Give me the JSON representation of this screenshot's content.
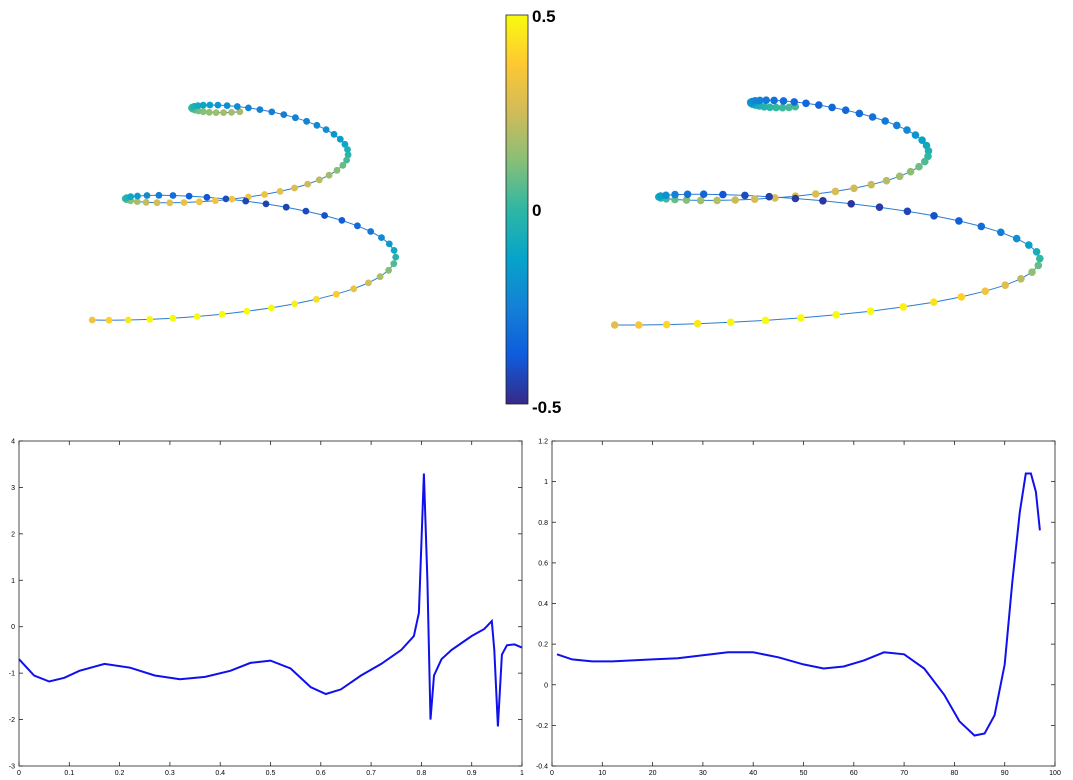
{
  "colorbar": {
    "ticks": [
      {
        "value": 0.5,
        "label": "0.5"
      },
      {
        "value": 0,
        "label": "0"
      },
      {
        "value": -0.5,
        "label": "-0.5"
      }
    ],
    "range": [
      -0.5,
      0.5
    ],
    "colormap": "parula",
    "colors": [
      "#352a87",
      "#0f5cdd",
      "#1481d6",
      "#06a4ca",
      "#2eb7a4",
      "#87bf77",
      "#d1bb59",
      "#fec832",
      "#f9fb0e"
    ]
  },
  "chart_data": [
    {
      "type": "scatter",
      "name": "curve-left",
      "description_hint": "3D spiral curve with markers colored by value",
      "marker_count": 90,
      "color_range": [
        -0.5,
        0.5
      ]
    },
    {
      "type": "scatter",
      "name": "curve-right",
      "marker_count": 90,
      "color_range": [
        -0.5,
        0.5
      ]
    },
    {
      "type": "line",
      "xlim": [
        0,
        1
      ],
      "ylim": [
        -3,
        4
      ],
      "xticks": [
        "0",
        "0.1",
        "0.2",
        "0.3",
        "0.4",
        "0.5",
        "0.6",
        "0.7",
        "0.8",
        "0.9",
        "1"
      ],
      "yticks": [
        "-3",
        "-2",
        "-1",
        "0",
        "1",
        "2",
        "3",
        "4"
      ],
      "series": [
        {
          "color": "#1010ee",
          "points": [
            [
              0.0,
              -0.7
            ],
            [
              0.03,
              -1.05
            ],
            [
              0.06,
              -1.18
            ],
            [
              0.09,
              -1.1
            ],
            [
              0.12,
              -0.95
            ],
            [
              0.17,
              -0.8
            ],
            [
              0.22,
              -0.88
            ],
            [
              0.27,
              -1.05
            ],
            [
              0.32,
              -1.13
            ],
            [
              0.37,
              -1.08
            ],
            [
              0.42,
              -0.95
            ],
            [
              0.46,
              -0.78
            ],
            [
              0.5,
              -0.73
            ],
            [
              0.54,
              -0.9
            ],
            [
              0.58,
              -1.3
            ],
            [
              0.61,
              -1.45
            ],
            [
              0.64,
              -1.35
            ],
            [
              0.68,
              -1.05
            ],
            [
              0.72,
              -0.8
            ],
            [
              0.76,
              -0.5
            ],
            [
              0.785,
              -0.2
            ],
            [
              0.795,
              0.3
            ],
            [
              0.805,
              3.3
            ],
            [
              0.812,
              1.0
            ],
            [
              0.818,
              -2.0
            ],
            [
              0.825,
              -1.05
            ],
            [
              0.84,
              -0.7
            ],
            [
              0.86,
              -0.5
            ],
            [
              0.88,
              -0.35
            ],
            [
              0.9,
              -0.2
            ],
            [
              0.925,
              -0.05
            ],
            [
              0.94,
              0.12
            ],
            [
              0.945,
              -0.5
            ],
            [
              0.952,
              -2.15
            ],
            [
              0.96,
              -0.6
            ],
            [
              0.97,
              -0.4
            ],
            [
              0.985,
              -0.38
            ],
            [
              1.0,
              -0.45
            ]
          ]
        }
      ]
    },
    {
      "type": "line",
      "xlim": [
        0,
        100
      ],
      "ylim": [
        -0.4,
        1.2
      ],
      "xticks": [
        "0",
        "10",
        "20",
        "30",
        "40",
        "50",
        "60",
        "70",
        "80",
        "90",
        "100"
      ],
      "yticks": [
        "-0.4",
        "-0.2",
        "0",
        "0.2",
        "0.4",
        "0.6",
        "0.8",
        "1",
        "1.2"
      ],
      "series": [
        {
          "color": "#1010ee",
          "points": [
            [
              1,
              0.15
            ],
            [
              4,
              0.125
            ],
            [
              8,
              0.115
            ],
            [
              12,
              0.115
            ],
            [
              16,
              0.12
            ],
            [
              20,
              0.125
            ],
            [
              25,
              0.13
            ],
            [
              30,
              0.145
            ],
            [
              35,
              0.16
            ],
            [
              40,
              0.16
            ],
            [
              45,
              0.135
            ],
            [
              50,
              0.1
            ],
            [
              54,
              0.08
            ],
            [
              58,
              0.09
            ],
            [
              62,
              0.12
            ],
            [
              66,
              0.16
            ],
            [
              70,
              0.15
            ],
            [
              74,
              0.08
            ],
            [
              78,
              -0.05
            ],
            [
              81,
              -0.18
            ],
            [
              84,
              -0.25
            ],
            [
              86,
              -0.24
            ],
            [
              88,
              -0.15
            ],
            [
              90,
              0.1
            ],
            [
              91.5,
              0.5
            ],
            [
              93,
              0.85
            ],
            [
              94.2,
              1.04
            ],
            [
              95.2,
              1.04
            ],
            [
              96.2,
              0.95
            ],
            [
              97,
              0.76
            ]
          ]
        }
      ]
    }
  ]
}
